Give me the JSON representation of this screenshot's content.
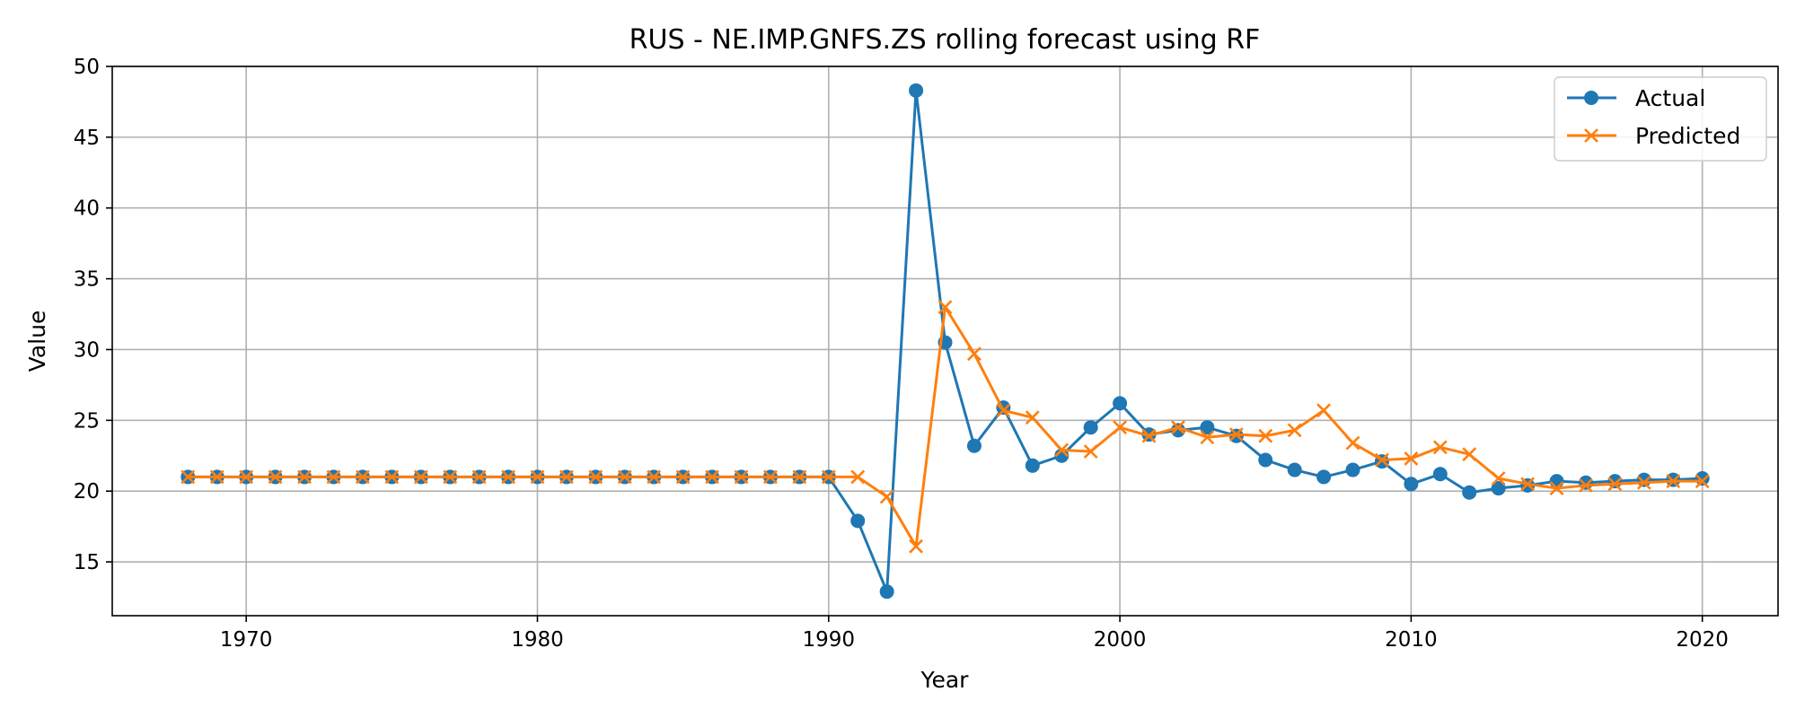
{
  "chart_data": {
    "type": "line",
    "title": "RUS - NE.IMP.GNFS.ZS rolling forecast using RF",
    "xlabel": "Year",
    "ylabel": "Value",
    "xlim": [
      1965.4,
      2022.6
    ],
    "ylim": [
      11.2,
      50
    ],
    "xticks": [
      1970,
      1980,
      1990,
      2000,
      2010,
      2020
    ],
    "yticks": [
      15,
      20,
      25,
      30,
      35,
      40,
      45,
      50
    ],
    "grid": true,
    "legend_position": "top-right",
    "x": [
      1968,
      1969,
      1970,
      1971,
      1972,
      1973,
      1974,
      1975,
      1976,
      1977,
      1978,
      1979,
      1980,
      1981,
      1982,
      1983,
      1984,
      1985,
      1986,
      1987,
      1988,
      1989,
      1990,
      1991,
      1992,
      1993,
      1994,
      1995,
      1996,
      1997,
      1998,
      1999,
      2000,
      2001,
      2002,
      2003,
      2004,
      2005,
      2006,
      2007,
      2008,
      2009,
      2010,
      2011,
      2012,
      2013,
      2014,
      2015,
      2016,
      2017,
      2018,
      2019,
      2020
    ],
    "series": [
      {
        "name": "Actual",
        "color": "#1f77b4",
        "marker": "circle",
        "values": [
          21,
          21,
          21,
          21,
          21,
          21,
          21,
          21,
          21,
          21,
          21,
          21,
          21,
          21,
          21,
          21,
          21,
          21,
          21,
          21,
          21,
          21,
          21,
          17.9,
          12.9,
          48.3,
          30.5,
          23.2,
          25.9,
          21.8,
          22.5,
          24.5,
          26.2,
          24.0,
          24.3,
          24.5,
          23.9,
          22.2,
          21.5,
          21.0,
          21.5,
          22.1,
          20.5,
          21.2,
          19.9,
          20.2,
          20.4,
          20.7,
          20.6,
          20.7,
          20.8,
          20.8,
          20.9
        ]
      },
      {
        "name": "Predicted",
        "color": "#ff7f0e",
        "marker": "x",
        "values": [
          21,
          21,
          21,
          21,
          21,
          21,
          21,
          21,
          21,
          21,
          21,
          21,
          21,
          21,
          21,
          21,
          21,
          21,
          21,
          21,
          21,
          21,
          21,
          21.0,
          19.6,
          16.1,
          33.0,
          29.7,
          25.7,
          25.2,
          22.9,
          22.8,
          24.5,
          23.9,
          24.5,
          23.8,
          24.0,
          23.9,
          24.3,
          25.7,
          23.4,
          22.2,
          22.3,
          23.1,
          22.6,
          20.9,
          20.5,
          20.2,
          20.4,
          20.5,
          20.6,
          20.7,
          20.7
        ]
      }
    ]
  }
}
